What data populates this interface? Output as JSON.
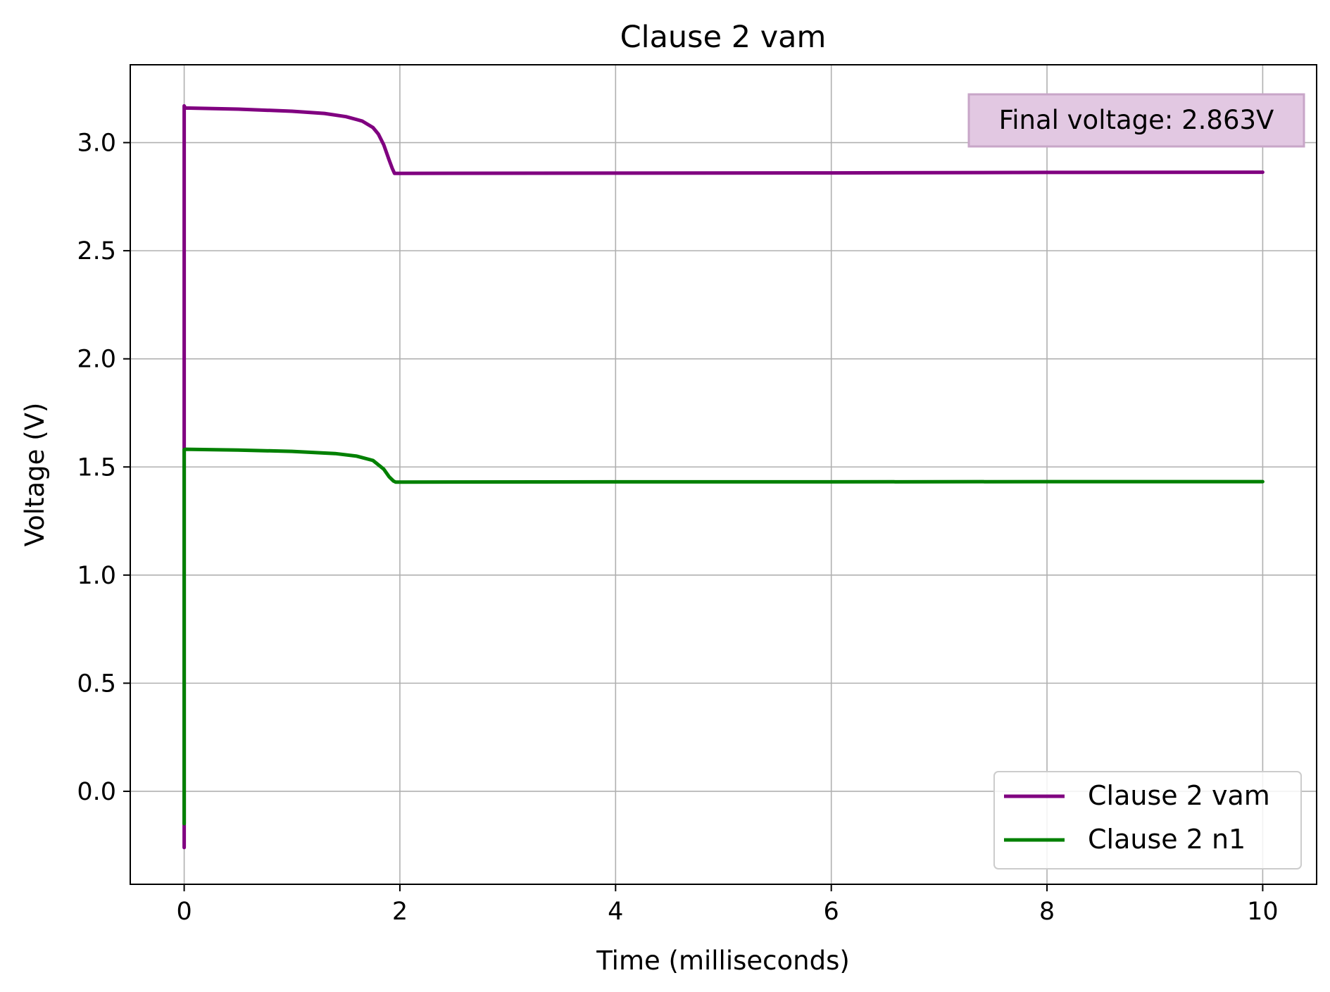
{
  "chart_data": {
    "type": "line",
    "title": "Clause 2 vam",
    "xlabel": "Time (milliseconds)",
    "ylabel": "Voltage (V)",
    "xlim": [
      -0.5,
      10.5
    ],
    "ylim": [
      -0.43,
      3.36
    ],
    "xticks": [
      0,
      2,
      4,
      6,
      8,
      10
    ],
    "xtick_labels": [
      "0",
      "2",
      "4",
      "6",
      "8",
      "10"
    ],
    "yticks": [
      0.0,
      0.5,
      1.0,
      1.5,
      2.0,
      2.5,
      3.0
    ],
    "ytick_labels": [
      "0.0",
      "0.5",
      "1.0",
      "1.5",
      "2.0",
      "2.5",
      "3.0"
    ],
    "grid": true,
    "legend_position": "lower-right",
    "annotation": {
      "text": "Final voltage: 2.863V",
      "position": "top-right",
      "background": "#e2c8e2",
      "border": "#c8a6c8"
    },
    "series": [
      {
        "name": "Clause 2 vam",
        "color": "#800080",
        "x": [
          0,
          0,
          0,
          0.01,
          0.5,
          1.0,
          1.3,
          1.5,
          1.65,
          1.75,
          1.8,
          1.85,
          1.9,
          1.93,
          1.95,
          2.0,
          4.0,
          6.0,
          8.0,
          10.0
        ],
        "y": [
          -0.26,
          -0.16,
          3.17,
          3.16,
          3.155,
          3.145,
          3.135,
          3.12,
          3.1,
          3.07,
          3.04,
          2.99,
          2.92,
          2.88,
          2.858,
          2.858,
          2.859,
          2.86,
          2.862,
          2.863
        ]
      },
      {
        "name": "Clause 2 n1",
        "color": "#008000",
        "x": [
          0,
          0,
          0,
          0.01,
          0.5,
          1.0,
          1.4,
          1.6,
          1.75,
          1.85,
          1.9,
          1.94,
          1.96,
          2.0,
          4.0,
          6.0,
          8.0,
          10.0
        ],
        "y": [
          -0.15,
          0.0,
          1.58,
          1.582,
          1.578,
          1.572,
          1.562,
          1.55,
          1.53,
          1.49,
          1.455,
          1.435,
          1.43,
          1.43,
          1.431,
          1.431,
          1.432,
          1.432
        ]
      }
    ]
  }
}
